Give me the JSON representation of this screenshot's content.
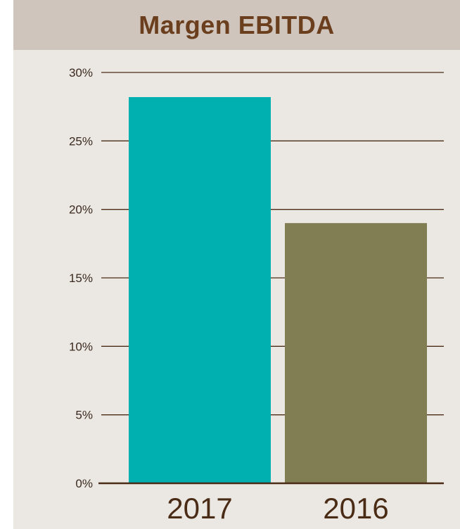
{
  "chart_data": {
    "type": "bar",
    "title": "Margen EBITDA",
    "xlabel": "",
    "ylabel": "",
    "categories": [
      "2017",
      "2016"
    ],
    "values": [
      28.2,
      19.0
    ],
    "colors": [
      "#00b0b1",
      "#827e53"
    ],
    "ylim": [
      0,
      30
    ],
    "yticks": [
      "0%",
      "5%",
      "10%",
      "15%",
      "20%",
      "25%",
      "30%"
    ],
    "grid": true,
    "legend": "none",
    "title_color": "#6b3f1d",
    "axis_color": "#4a2c16",
    "background": "#ebe7e2",
    "title_background": "#cfc5bc"
  }
}
